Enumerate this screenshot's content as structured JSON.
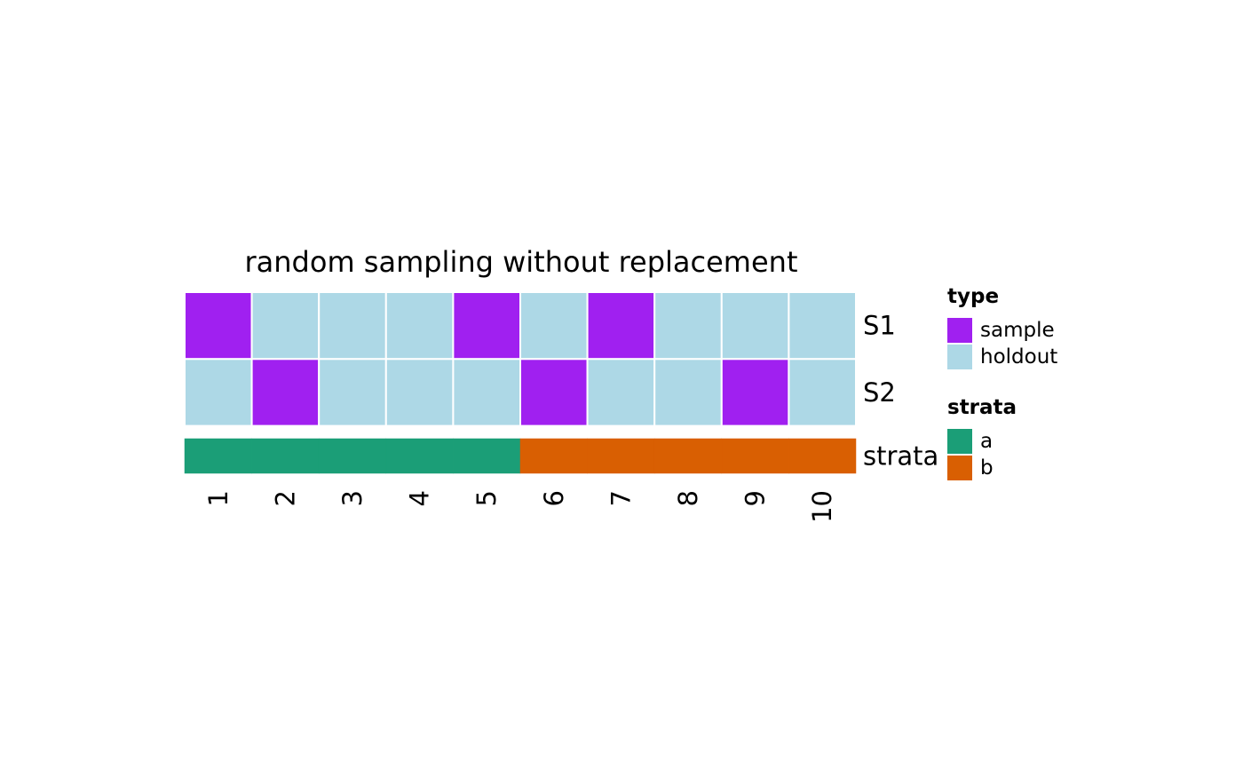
{
  "chart_data": {
    "type": "heatmap",
    "title": "random sampling without replacement",
    "columns": [
      "1",
      "2",
      "3",
      "4",
      "5",
      "6",
      "7",
      "8",
      "9",
      "10"
    ],
    "rows": [
      {
        "name": "S1",
        "values": [
          "sample",
          "holdout",
          "holdout",
          "holdout",
          "sample",
          "holdout",
          "sample",
          "holdout",
          "holdout",
          "holdout"
        ]
      },
      {
        "name": "S2",
        "values": [
          "holdout",
          "sample",
          "holdout",
          "holdout",
          "holdout",
          "sample",
          "holdout",
          "holdout",
          "sample",
          "holdout"
        ]
      }
    ],
    "strata_row": {
      "name": "strata",
      "values": [
        "a",
        "a",
        "a",
        "a",
        "a",
        "b",
        "b",
        "b",
        "b",
        "b"
      ]
    },
    "legends": [
      {
        "title": "type",
        "entries": [
          {
            "label": "sample",
            "color": "#A020F0"
          },
          {
            "label": "holdout",
            "color": "#ADD8E6"
          }
        ]
      },
      {
        "title": "strata",
        "entries": [
          {
            "label": "a",
            "color": "#1B9E77"
          },
          {
            "label": "b",
            "color": "#D95F02"
          }
        ]
      }
    ],
    "legend_position": "right"
  }
}
